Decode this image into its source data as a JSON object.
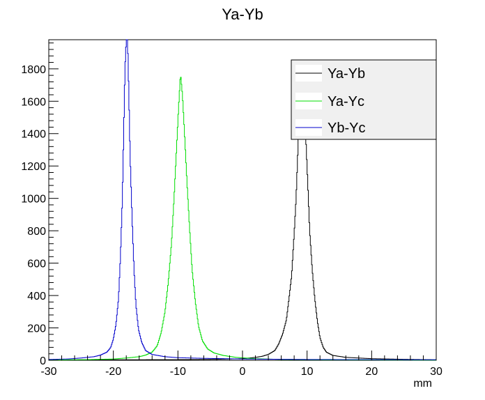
{
  "chart_data": {
    "type": "line",
    "title": "Ya-Yb",
    "xlabel": "mm",
    "ylabel": "",
    "xlim": [
      -30,
      30
    ],
    "ylim": [
      0,
      1980
    ],
    "x_ticks": [
      -30,
      -20,
      -10,
      0,
      10,
      20,
      30
    ],
    "y_ticks": [
      0,
      200,
      400,
      600,
      800,
      1000,
      1200,
      1400,
      1600,
      1800
    ],
    "grid": false,
    "legend_position": "top-right",
    "series": [
      {
        "name": "Ya-Yb",
        "color": "#000000",
        "points": [
          [
            -30,
            2
          ],
          [
            -20,
            3
          ],
          [
            -10,
            4
          ],
          [
            -4,
            6
          ],
          [
            0,
            10
          ],
          [
            2,
            18
          ],
          [
            3,
            24
          ],
          [
            4,
            36
          ],
          [
            5,
            60
          ],
          [
            5.6,
            100
          ],
          [
            6.2,
            160
          ],
          [
            6.8,
            250
          ],
          [
            7.2,
            380
          ],
          [
            7.6,
            520
          ],
          [
            8.0,
            780
          ],
          [
            8.3,
            1000
          ],
          [
            8.6,
            1320
          ],
          [
            8.9,
            1620
          ],
          [
            9.2,
            1880
          ],
          [
            9.5,
            1700
          ],
          [
            9.8,
            1380
          ],
          [
            10.1,
            1100
          ],
          [
            10.4,
            800
          ],
          [
            10.8,
            560
          ],
          [
            11.2,
            380
          ],
          [
            11.6,
            240
          ],
          [
            12.0,
            140
          ],
          [
            12.5,
            80
          ],
          [
            13.0,
            50
          ],
          [
            14,
            30
          ],
          [
            16,
            18
          ],
          [
            20,
            10
          ],
          [
            25,
            6
          ],
          [
            30,
            3
          ]
        ]
      },
      {
        "name": "Ya-Yc",
        "color": "#00dd00",
        "points": [
          [
            -30,
            2
          ],
          [
            -24,
            4
          ],
          [
            -20,
            8
          ],
          [
            -18,
            14
          ],
          [
            -16,
            22
          ],
          [
            -15,
            32
          ],
          [
            -14,
            50
          ],
          [
            -13.2,
            90
          ],
          [
            -12.6,
            170
          ],
          [
            -12.0,
            300
          ],
          [
            -11.5,
            480
          ],
          [
            -11.0,
            720
          ],
          [
            -10.6,
            1000
          ],
          [
            -10.2,
            1320
          ],
          [
            -9.9,
            1560
          ],
          [
            -9.6,
            1770
          ],
          [
            -9.3,
            1640
          ],
          [
            -9.0,
            1420
          ],
          [
            -8.6,
            1100
          ],
          [
            -8.2,
            820
          ],
          [
            -7.8,
            560
          ],
          [
            -7.3,
            360
          ],
          [
            -6.8,
            210
          ],
          [
            -6.2,
            120
          ],
          [
            -5.4,
            70
          ],
          [
            -4.4,
            45
          ],
          [
            -3,
            30
          ],
          [
            -1,
            18
          ],
          [
            2,
            10
          ],
          [
            6,
            5
          ],
          [
            12,
            3
          ],
          [
            20,
            2
          ],
          [
            30,
            1
          ]
        ]
      },
      {
        "name": "Yb-Yc",
        "color": "#0000cc",
        "points": [
          [
            -30,
            5
          ],
          [
            -27,
            8
          ],
          [
            -25,
            14
          ],
          [
            -23,
            22
          ],
          [
            -22,
            32
          ],
          [
            -21,
            50
          ],
          [
            -20.4,
            80
          ],
          [
            -20.0,
            130
          ],
          [
            -19.6,
            220
          ],
          [
            -19.2,
            380
          ],
          [
            -18.9,
            640
          ],
          [
            -18.6,
            1000
          ],
          [
            -18.4,
            1400
          ],
          [
            -18.2,
            1800
          ],
          [
            -18.0,
            1980
          ],
          [
            -17.8,
            1980
          ],
          [
            -17.6,
            1640
          ],
          [
            -17.4,
            1260
          ],
          [
            -17.1,
            880
          ],
          [
            -16.8,
            560
          ],
          [
            -16.5,
            340
          ],
          [
            -16.1,
            190
          ],
          [
            -15.6,
            110
          ],
          [
            -15.0,
            60
          ],
          [
            -14,
            36
          ],
          [
            -12,
            22
          ],
          [
            -10,
            16
          ],
          [
            -6,
            12
          ],
          [
            0,
            8
          ],
          [
            10,
            5
          ],
          [
            20,
            4
          ],
          [
            30,
            3
          ]
        ]
      }
    ]
  }
}
